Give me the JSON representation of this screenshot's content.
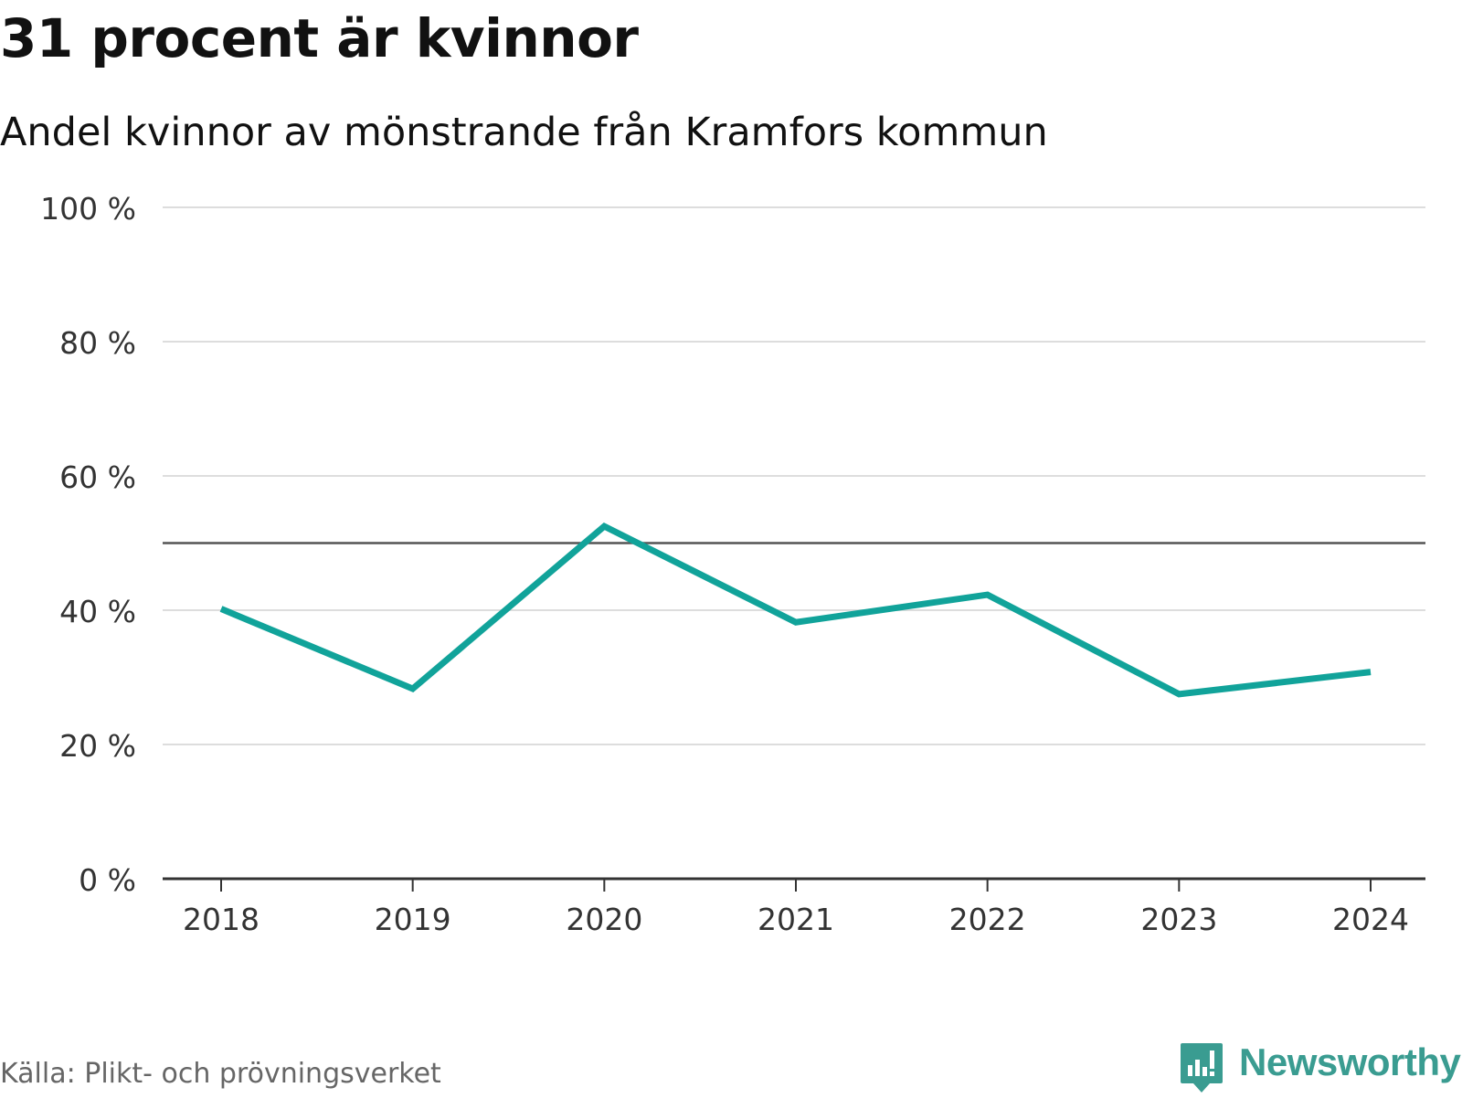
{
  "header": {
    "title": "31 procent är kvinnor",
    "subtitle": "Andel kvinnor av mönstrande från Kramfors kommun"
  },
  "footer": {
    "source": "Källa: Plikt- och prövningsverket",
    "brand": "Newsworthy",
    "brand_icon": "newsworthy-logo-icon"
  },
  "colors": {
    "line": "#11a39a",
    "grid": "#dddddd",
    "reference_line": "#555555",
    "axis": "#333333",
    "brand": "#3a9c91"
  },
  "chart_data": {
    "type": "line",
    "title": "31 procent är kvinnor",
    "subtitle": "Andel kvinnor av mönstrande från Kramfors kommun",
    "xlabel": "",
    "ylabel": "",
    "categories": [
      "2018",
      "2019",
      "2020",
      "2021",
      "2022",
      "2023",
      "2024"
    ],
    "series": [
      {
        "name": "Andel kvinnor",
        "values": [
          40.2,
          28.3,
          52.5,
          38.2,
          42.3,
          27.5,
          30.8
        ]
      }
    ],
    "ylim": [
      0,
      100
    ],
    "yticks": [
      0,
      20,
      40,
      60,
      80,
      100
    ],
    "ytick_labels": [
      "0 %",
      "20 %",
      "40 %",
      "60 %",
      "80 %",
      "100 %"
    ],
    "reference_line": 50,
    "grid": true,
    "legend": "none"
  }
}
